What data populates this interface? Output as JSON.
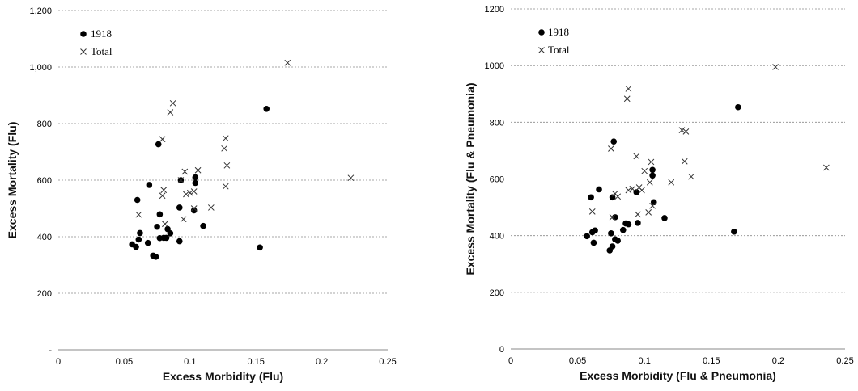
{
  "chart_data": [
    {
      "type": "scatter",
      "xlabel": "Excess Morbidity (Flu)",
      "ylabel": "Excess Mortality (Flu)",
      "xlim": [
        0,
        0.25
      ],
      "ylim": [
        0,
        1200
      ],
      "x_ticks": [
        "0",
        "0.05",
        "0.1",
        "0.15",
        "0.2",
        "0.25"
      ],
      "y_ticks": [
        "-",
        "200",
        "400",
        "600",
        "800",
        "1,000",
        "1,200"
      ],
      "grid": "horizontal dashed",
      "legend_position": "top-left",
      "series": [
        {
          "name": "1918",
          "marker": "dot",
          "color": "#000000",
          "points": [
            [
              0.056,
              373
            ],
            [
              0.059,
              364
            ],
            [
              0.06,
              530
            ],
            [
              0.061,
              390
            ],
            [
              0.062,
              413
            ],
            [
              0.068,
              378
            ],
            [
              0.069,
              583
            ],
            [
              0.072,
              333
            ],
            [
              0.074,
              329
            ],
            [
              0.075,
              435
            ],
            [
              0.076,
              727
            ],
            [
              0.077,
              395
            ],
            [
              0.077,
              479
            ],
            [
              0.08,
              396
            ],
            [
              0.082,
              396
            ],
            [
              0.083,
              427
            ],
            [
              0.085,
              412
            ],
            [
              0.092,
              384
            ],
            [
              0.092,
              503
            ],
            [
              0.093,
              600
            ],
            [
              0.103,
              493
            ],
            [
              0.104,
              610
            ],
            [
              0.104,
              590
            ],
            [
              0.11,
              438
            ],
            [
              0.153,
              362
            ],
            [
              0.158,
              852
            ]
          ]
        },
        {
          "name": "Total",
          "marker": "cross",
          "color": "#333333",
          "points": [
            [
              0.061,
              478
            ],
            [
              0.079,
              545
            ],
            [
              0.079,
              745
            ],
            [
              0.08,
              565
            ],
            [
              0.081,
              445
            ],
            [
              0.085,
              840
            ],
            [
              0.087,
              872
            ],
            [
              0.093,
              600
            ],
            [
              0.095,
              462
            ],
            [
              0.096,
              630
            ],
            [
              0.097,
              550
            ],
            [
              0.1,
              555
            ],
            [
              0.103,
              560
            ],
            [
              0.103,
              500
            ],
            [
              0.106,
              635
            ],
            [
              0.116,
              503
            ],
            [
              0.126,
              712
            ],
            [
              0.127,
              748
            ],
            [
              0.127,
              578
            ],
            [
              0.128,
              652
            ],
            [
              0.174,
              1015
            ],
            [
              0.222,
              608
            ]
          ]
        }
      ]
    },
    {
      "type": "scatter",
      "xlabel": "Excess Morbidity (Flu & Pneumonia)",
      "ylabel": "Excess Mortality (Flu & Pneumonia)",
      "xlim": [
        0,
        0.25
      ],
      "ylim": [
        0,
        1200
      ],
      "x_ticks": [
        "0",
        "0.05",
        "0.1",
        "0.15",
        "0.2",
        "0.25"
      ],
      "y_ticks": [
        "0",
        "200",
        "400",
        "600",
        "800",
        "1000",
        "1200"
      ],
      "grid": "horizontal dashed",
      "legend_position": "top-left",
      "series": [
        {
          "name": "1918",
          "marker": "dot",
          "color": "#000000",
          "points": [
            [
              0.057,
              398
            ],
            [
              0.06,
              535
            ],
            [
              0.061,
              412
            ],
            [
              0.062,
              375
            ],
            [
              0.063,
              418
            ],
            [
              0.066,
              563
            ],
            [
              0.074,
              348
            ],
            [
              0.075,
              408
            ],
            [
              0.076,
              535
            ],
            [
              0.076,
              362
            ],
            [
              0.077,
              732
            ],
            [
              0.078,
              465
            ],
            [
              0.078,
              387
            ],
            [
              0.08,
              382
            ],
            [
              0.084,
              420
            ],
            [
              0.086,
              443
            ],
            [
              0.088,
              440
            ],
            [
              0.094,
              553
            ],
            [
              0.095,
              445
            ],
            [
              0.106,
              632
            ],
            [
              0.106,
              612
            ],
            [
              0.107,
              518
            ],
            [
              0.115,
              462
            ],
            [
              0.167,
              414
            ],
            [
              0.17,
              853
            ]
          ]
        },
        {
          "name": "Total",
          "marker": "cross",
          "color": "#333333",
          "points": [
            [
              0.061,
              485
            ],
            [
              0.075,
              707
            ],
            [
              0.076,
              465
            ],
            [
              0.078,
              548
            ],
            [
              0.08,
              538
            ],
            [
              0.087,
              883
            ],
            [
              0.088,
              918
            ],
            [
              0.088,
              560
            ],
            [
              0.091,
              565
            ],
            [
              0.094,
              680
            ],
            [
              0.095,
              475
            ],
            [
              0.096,
              570
            ],
            [
              0.098,
              560
            ],
            [
              0.1,
              628
            ],
            [
              0.103,
              482
            ],
            [
              0.104,
              588
            ],
            [
              0.105,
              660
            ],
            [
              0.106,
              505
            ],
            [
              0.12,
              588
            ],
            [
              0.128,
              772
            ],
            [
              0.13,
              662
            ],
            [
              0.131,
              767
            ],
            [
              0.135,
              608
            ],
            [
              0.198,
              995
            ],
            [
              0.236,
              640
            ]
          ]
        }
      ]
    }
  ]
}
